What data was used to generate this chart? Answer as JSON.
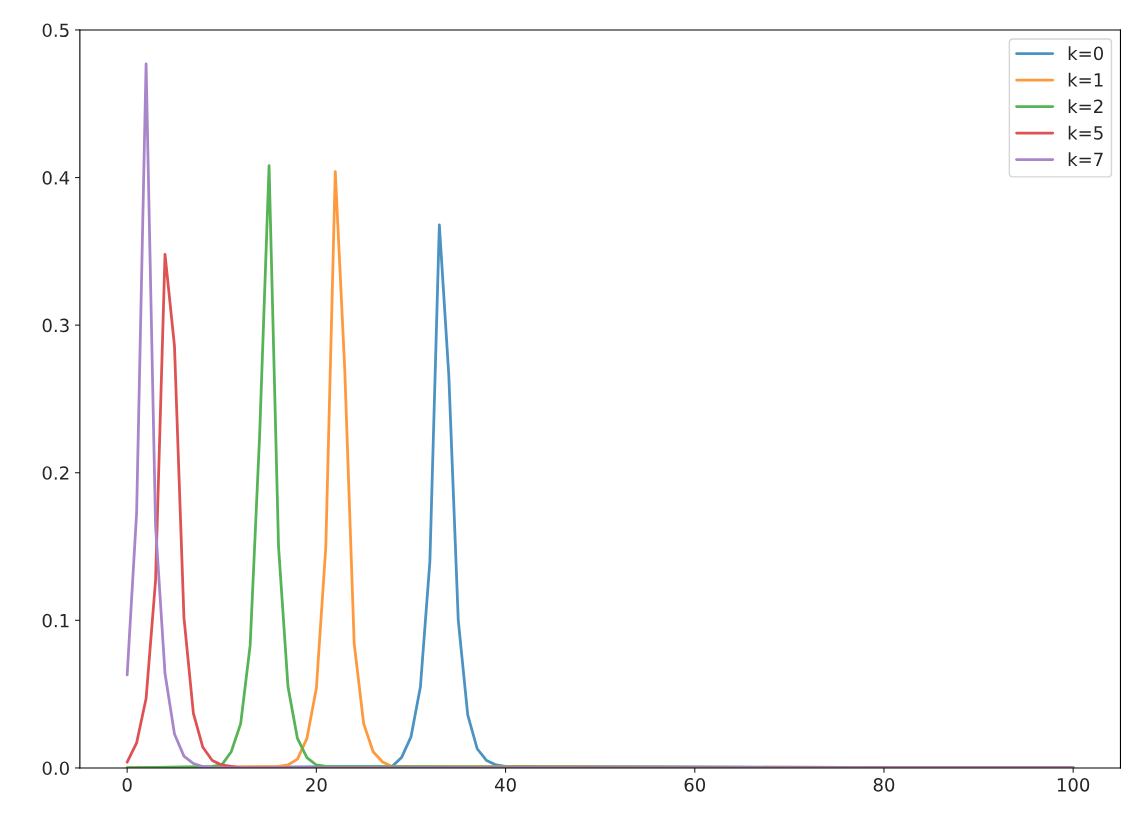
{
  "chart_data": {
    "type": "line",
    "xlim": [
      -5,
      105
    ],
    "ylim": [
      0,
      0.5
    ],
    "xticks": [
      0,
      20,
      40,
      60,
      80,
      100
    ],
    "yticks": [
      {
        "value": 0,
        "label": "0.0"
      },
      0.1,
      0.2,
      0.3,
      0.4,
      0.5
    ],
    "grid": false,
    "legend": "top right",
    "line_style": "solid",
    "marker": "none",
    "series": [
      {
        "name": "k=0",
        "color": "#4c92c3",
        "x": [
          0,
          28,
          29,
          30,
          31,
          32,
          33,
          34,
          35,
          36,
          37,
          38,
          39,
          40,
          100
        ],
        "values": [
          0,
          0.001,
          0.007,
          0.021,
          0.055,
          0.14,
          0.368,
          0.266,
          0.1,
          0.036,
          0.013,
          0.005,
          0.002,
          0.001,
          0
        ]
      },
      {
        "name": "k=1",
        "color": "#ff993e",
        "x": [
          0,
          16,
          17,
          18,
          19,
          20,
          21,
          22,
          23,
          24,
          25,
          26,
          27,
          28,
          100
        ],
        "values": [
          0,
          0.001,
          0.002,
          0.006,
          0.02,
          0.054,
          0.15,
          0.404,
          0.27,
          0.084,
          0.03,
          0.011,
          0.004,
          0.001,
          0
        ]
      },
      {
        "name": "k=2",
        "color": "#56b356",
        "x": [
          0,
          9,
          10,
          11,
          12,
          13,
          14,
          15,
          16,
          17,
          18,
          19,
          20,
          21,
          100
        ],
        "values": [
          0,
          0.001,
          0.002,
          0.011,
          0.03,
          0.083,
          0.225,
          0.408,
          0.15,
          0.055,
          0.02,
          0.007,
          0.002,
          0.001,
          0
        ]
      },
      {
        "name": "k=5",
        "color": "#de5253",
        "x": [
          0,
          1,
          2,
          3,
          4,
          5,
          6,
          7,
          8,
          9,
          10,
          11,
          12,
          100
        ],
        "values": [
          0.004,
          0.017,
          0.047,
          0.127,
          0.348,
          0.286,
          0.102,
          0.037,
          0.014,
          0.005,
          0.002,
          0.001,
          0,
          0
        ]
      },
      {
        "name": "k=7",
        "color": "#a985ca",
        "x": [
          0,
          1,
          2,
          3,
          4,
          5,
          6,
          7,
          8,
          9,
          100
        ],
        "values": [
          0.063,
          0.173,
          0.477,
          0.164,
          0.064,
          0.023,
          0.008,
          0.003,
          0.001,
          0,
          0
        ]
      }
    ]
  }
}
